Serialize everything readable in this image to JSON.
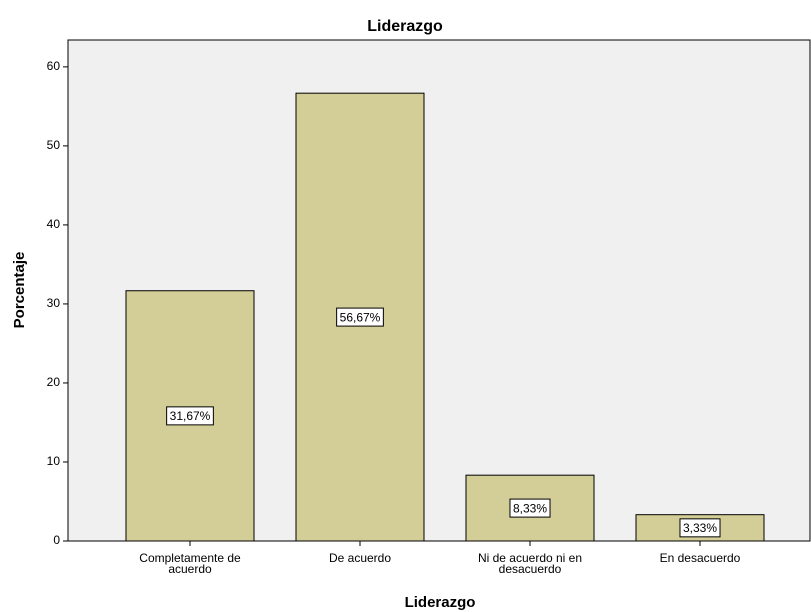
{
  "chart_data": {
    "type": "bar",
    "title": "Liderazgo",
    "x_label": "Liderazgo",
    "y_label": "Porcentaje",
    "categories": [
      "Completamente de acuerdo",
      "De acuerdo",
      "Ni de acuerdo ni en desacuerdo",
      "En desacuerdo"
    ],
    "values": [
      31.67,
      56.67,
      8.33,
      3.33
    ],
    "value_labels": [
      "31,67%",
      "56,67%",
      "8,33%",
      "3,33%"
    ],
    "color": "#d3ce97",
    "ylim": [
      0,
      63.4
    ],
    "yticks": [
      0,
      10,
      20,
      30,
      40,
      50,
      60
    ],
    "grid": false
  }
}
